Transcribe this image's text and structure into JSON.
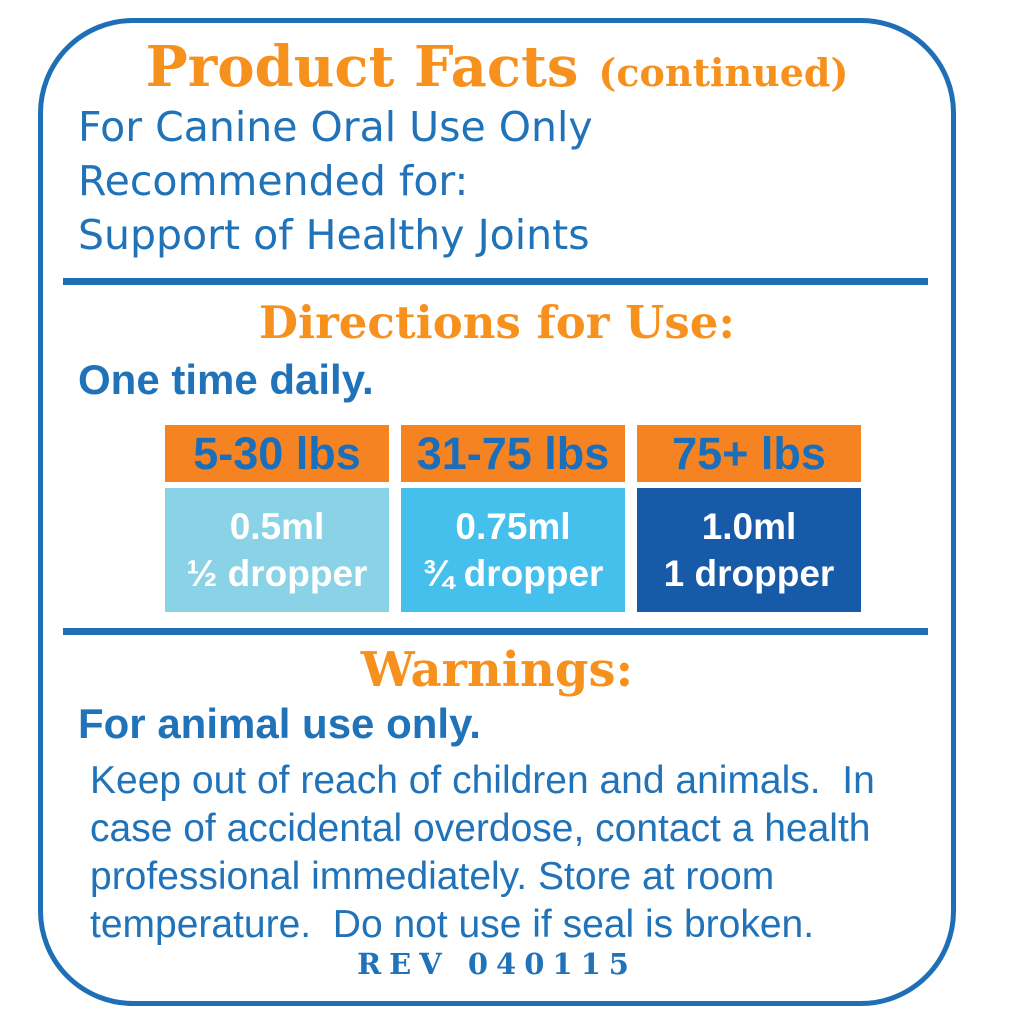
{
  "colors": {
    "accent-orange": "#F6911E",
    "header-bg-orange": "#F58321",
    "brand-blue": "#1E6FB6",
    "text-blue": "#2173B9",
    "table-header-text": "#1B6FBA",
    "cell-light-blue": "#8AD3E6",
    "cell-mid-blue": "#45BFEB",
    "cell-dark-blue": "#175AA8",
    "cell-text": "#FFFFFF"
  },
  "header": {
    "title": "Product Facts",
    "continued": "(continued)"
  },
  "intro": {
    "lines": [
      "For Canine Oral Use Only",
      "Recommended for:",
      "Support of Healthy Joints"
    ]
  },
  "directions": {
    "heading": "Directions for Use:",
    "frequency": "One time daily.",
    "dosage_table": {
      "columns": [
        {
          "weight_range": "5-30 lbs",
          "dose_ml": "0.5ml",
          "dose_dropper": "½ dropper"
        },
        {
          "weight_range": "31-75 lbs",
          "dose_ml": "0.75ml",
          "dose_dropper": "¾ dropper"
        },
        {
          "weight_range": "75+ lbs",
          "dose_ml": "1.0ml",
          "dose_dropper": "1 dropper"
        }
      ]
    }
  },
  "warnings": {
    "heading": "Warnings:",
    "emphasis": "For animal use only.",
    "body_lines": [
      "Keep out of reach of children and animals.  In",
      "case of accidental overdose, contact a health",
      "professional immediately. Store at room",
      "temperature.  Do not use if seal is broken."
    ]
  },
  "footer": {
    "revision": "REV 040115"
  }
}
